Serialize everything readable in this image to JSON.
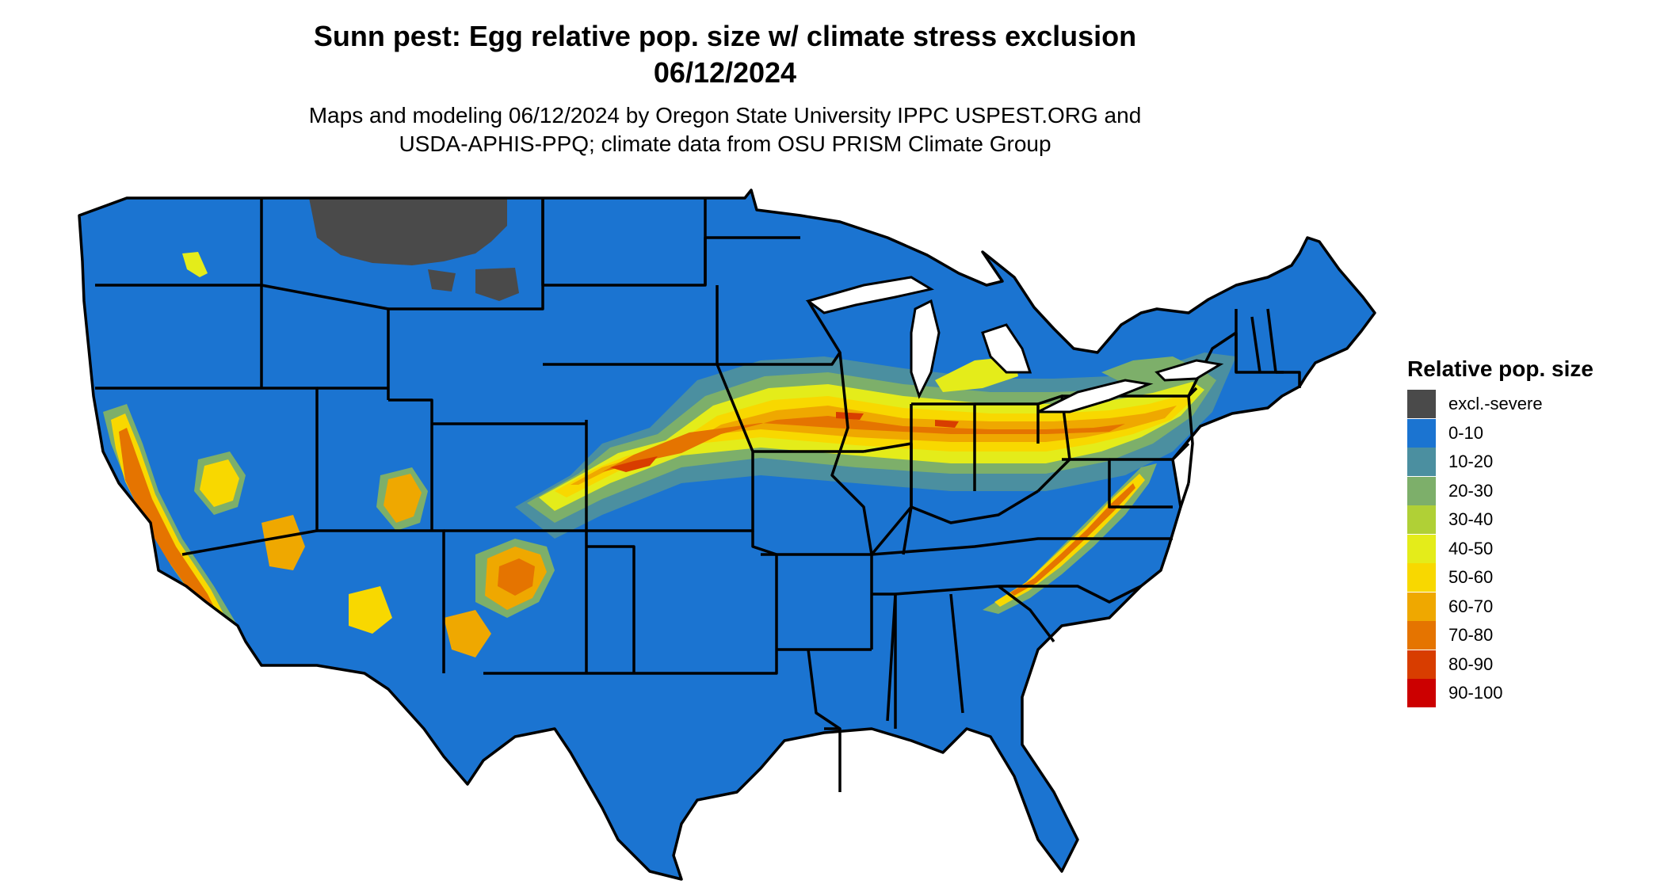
{
  "title_line1": "Sunn pest: Egg relative pop. size w/ climate stress exclusion",
  "title_line2": "06/12/2024",
  "subtitle_line1": "Maps and modeling 06/12/2024 by Oregon State University IPPC USPEST.ORG and",
  "subtitle_line2": "USDA-APHIS-PPQ; climate data from OSU PRISM Climate Group",
  "legend": {
    "title": "Relative pop. size",
    "items": [
      {
        "label": "excl.-severe",
        "color": "#4a4a4a"
      },
      {
        "label": "0-10",
        "color": "#1b74d1"
      },
      {
        "label": "10-20",
        "color": "#4b8fa0"
      },
      {
        "label": "20-30",
        "color": "#7daf6a"
      },
      {
        "label": "30-40",
        "color": "#b0d036"
      },
      {
        "label": "40-50",
        "color": "#e4ec1a"
      },
      {
        "label": "50-60",
        "color": "#f8d800"
      },
      {
        "label": "60-70",
        "color": "#efa800"
      },
      {
        "label": "70-80",
        "color": "#e57400"
      },
      {
        "label": "80-90",
        "color": "#d83d00"
      },
      {
        "label": "90-100",
        "color": "#cc0000"
      }
    ]
  },
  "map": {
    "base_color": "#1b74d1",
    "border_color": "#000000",
    "region": "Contiguous United States"
  }
}
